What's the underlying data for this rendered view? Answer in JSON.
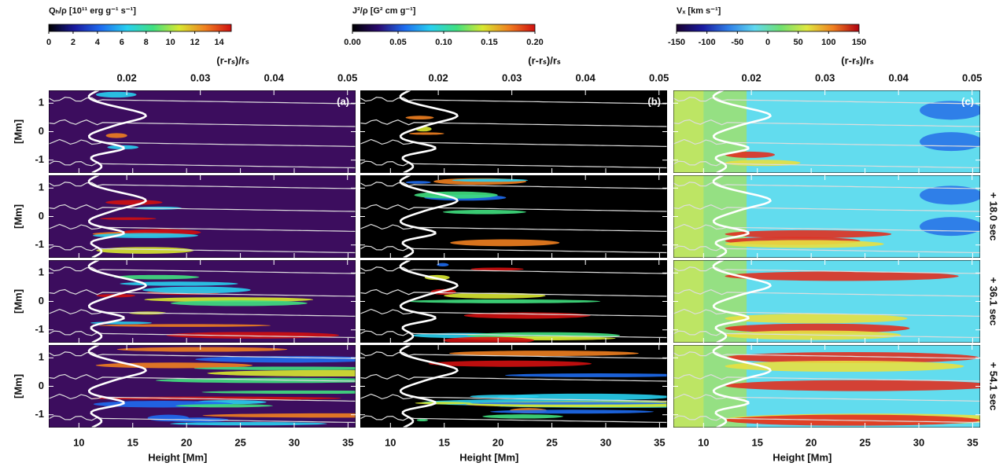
{
  "columns": [
    {
      "panel_label": "(a)",
      "colorbar": {
        "title": "Qₕ/ρ [10¹¹ erg g⁻¹ s⁻¹]",
        "lim": [
          0,
          15
        ],
        "ticks": [
          0,
          2,
          4,
          6,
          8,
          10,
          12,
          14
        ],
        "colors": [
          "#000000",
          "#1a1aa0",
          "#1e6cf0",
          "#28d0f0",
          "#40e080",
          "#d8e830",
          "#f08020",
          "#d01010"
        ],
        "background": "#3c0d5e"
      }
    },
    {
      "panel_label": "(b)",
      "colorbar": {
        "title": "J²/ρ [G² cm g⁻¹]",
        "lim": [
          0,
          0.2
        ],
        "ticks": [
          {
            "value": 0,
            "label": "0.00"
          },
          0.05,
          {
            "value": 0.1,
            "label": "0.10"
          },
          0.15,
          {
            "value": 0.2,
            "label": "0.20"
          }
        ],
        "colors": [
          "#000000",
          "#2a0a70",
          "#1e6cf0",
          "#28d0f0",
          "#40e080",
          "#d8e830",
          "#f08020",
          "#d01010"
        ],
        "background": "#000000"
      }
    },
    {
      "panel_label": "(c)",
      "colorbar": {
        "title": "Vₓ [km s⁻¹]",
        "lim": [
          -150,
          150
        ],
        "ticks": [
          -150,
          -100,
          -50,
          0,
          50,
          100,
          150
        ],
        "colors": [
          "#1a0030",
          "#1a1aa0",
          "#2f7fe8",
          "#5fd8f0",
          "#70e070",
          "#e0e840",
          "#f08020",
          "#b00010"
        ],
        "background": "#62dcee"
      }
    }
  ],
  "top_axis": {
    "label": "(r-rₛ)/rₛ",
    "lim": [
      0.0094,
      0.0511
    ],
    "ticks": [
      0.02,
      0.03,
      0.04,
      0.05
    ]
  },
  "x_axis": {
    "label": "Height [Mm]",
    "lim": [
      7.2,
      35.7
    ],
    "ticks": [
      10,
      15,
      20,
      25,
      30,
      35
    ]
  },
  "y_axis": {
    "label": "[Mm]",
    "lim": [
      -1.45,
      1.45
    ],
    "ticks": [
      1,
      0,
      -1
    ]
  },
  "time_labels": [
    "+ 18.0 sec",
    "+ 36.1 sec",
    "+ 54.1 sec"
  ]
}
